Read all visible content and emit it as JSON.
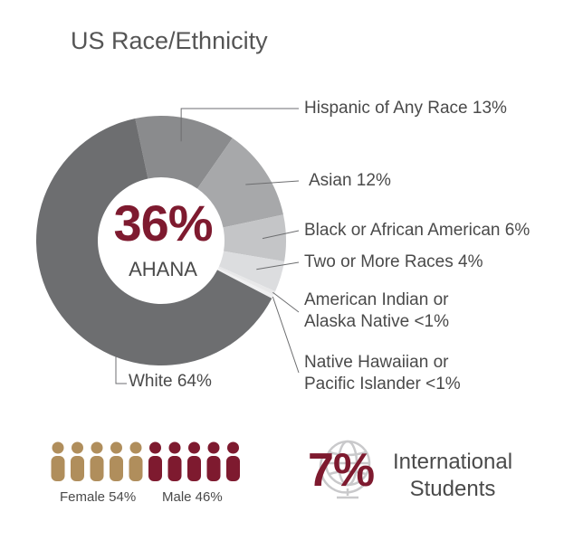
{
  "chart_data": {
    "type": "pie",
    "title": "US Race/Ethnicity",
    "center_value": "36%",
    "center_label": "AHANA",
    "slices": [
      {
        "label": "White 64%",
        "category": "White",
        "value": 64,
        "color": "#6d6e70"
      },
      {
        "label": "Hispanic of Any Race 13%",
        "category": "Hispanic of Any Race",
        "value": 13,
        "color": "#8a8b8d"
      },
      {
        "label": "Asian 12%",
        "category": "Asian",
        "value": 12,
        "color": "#a7a8aa"
      },
      {
        "label": "Black or African American 6%",
        "category": "Black or African American",
        "value": 6,
        "color": "#c4c5c7"
      },
      {
        "label": "Two or More Races 4%",
        "category": "Two or More Races",
        "value": 4,
        "color": "#dcdddf"
      },
      {
        "label": "American Indian or\nAlaska Native <1%",
        "category": "American Indian or Alaska Native",
        "value": 0.5,
        "color": "#e8e8e9"
      },
      {
        "label": "Native Hawaiian or\nPacific Islander <1%",
        "category": "Native Hawaiian or Pacific Islander",
        "value": 0.5,
        "color": "#f0f0f1"
      }
    ]
  },
  "gender": {
    "female_label": "Female 54%",
    "male_label": "Male 46%",
    "female_count": 5,
    "male_count": 5,
    "female_color": "#b08e5c",
    "male_color": "#7e1a2f"
  },
  "international": {
    "value": "7%",
    "label_line1": "International",
    "label_line2": "Students",
    "icon": "globe-icon"
  }
}
